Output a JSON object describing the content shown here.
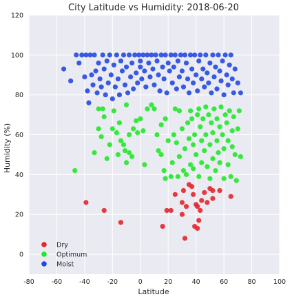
{
  "chart_data": {
    "type": "scatter",
    "title": "City Latitude vs Humidity: 2018-06-20",
    "xlabel": "Latitude",
    "ylabel": "Humidity (%)",
    "xlim": [
      -80,
      100
    ],
    "ylim": [
      -10,
      120
    ],
    "xticks": [
      "-80",
      "-60",
      "-40",
      "-20",
      "0",
      "20",
      "40",
      "60",
      "80",
      "100"
    ],
    "yticks": [
      "0",
      "20",
      "40",
      "60",
      "80",
      "100",
      "120"
    ],
    "grid": true,
    "background": "#eaeaf2",
    "legend_position": "lower-left",
    "series": [
      {
        "name": "Dry",
        "color": "#e3262b",
        "points": [
          [
            -39,
            26
          ],
          [
            -26,
            22
          ],
          [
            -14,
            16
          ],
          [
            16,
            14
          ],
          [
            19,
            22
          ],
          [
            22,
            22
          ],
          [
            25,
            30
          ],
          [
            30,
            26
          ],
          [
            30,
            20
          ],
          [
            31,
            32
          ],
          [
            32,
            8
          ],
          [
            33,
            24
          ],
          [
            35,
            35
          ],
          [
            37,
            34
          ],
          [
            38,
            30
          ],
          [
            39,
            14
          ],
          [
            40,
            25
          ],
          [
            41,
            24
          ],
          [
            41,
            13
          ],
          [
            42,
            17
          ],
          [
            43,
            22
          ],
          [
            44,
            27
          ],
          [
            46,
            31
          ],
          [
            48,
            26
          ],
          [
            50,
            33
          ],
          [
            52,
            28
          ],
          [
            52,
            32
          ],
          [
            57,
            32
          ],
          [
            65,
            29
          ]
        ]
      },
      {
        "name": "Optimum",
        "color": "#22e82a",
        "points": [
          [
            -47,
            42
          ],
          [
            -33,
            51
          ],
          [
            -30,
            63
          ],
          [
            -30,
            73
          ],
          [
            -28,
            59
          ],
          [
            -27,
            73
          ],
          [
            -26,
            69
          ],
          [
            -24,
            48
          ],
          [
            -22,
            55
          ],
          [
            -20,
            63
          ],
          [
            -19,
            72
          ],
          [
            -17,
            61
          ],
          [
            -16,
            50
          ],
          [
            -15,
            66
          ],
          [
            -14,
            57
          ],
          [
            -12,
            55
          ],
          [
            -11,
            52
          ],
          [
            -10,
            46
          ],
          [
            -10,
            75
          ],
          [
            -8,
            60
          ],
          [
            -8,
            51
          ],
          [
            -6,
            49
          ],
          [
            -5,
            63
          ],
          [
            -3,
            67
          ],
          [
            -2,
            61
          ],
          [
            0,
            68
          ],
          [
            2,
            62
          ],
          [
            3,
            45
          ],
          [
            5,
            73
          ],
          [
            8,
            75
          ],
          [
            10,
            73
          ],
          [
            12,
            60
          ],
          [
            13,
            52
          ],
          [
            15,
            65
          ],
          [
            15,
            50
          ],
          [
            17,
            42
          ],
          [
            18,
            38
          ],
          [
            18,
            68
          ],
          [
            20,
            57
          ],
          [
            22,
            39
          ],
          [
            23,
            46
          ],
          [
            24,
            60
          ],
          [
            25,
            73
          ],
          [
            26,
            56
          ],
          [
            27,
            39
          ],
          [
            28,
            49
          ],
          [
            28,
            72
          ],
          [
            30,
            63
          ],
          [
            31,
            42
          ],
          [
            32,
            53
          ],
          [
            33,
            40
          ],
          [
            34,
            66
          ],
          [
            35,
            58
          ],
          [
            36,
            45
          ],
          [
            36,
            72
          ],
          [
            37,
            68
          ],
          [
            38,
            55
          ],
          [
            38,
            43
          ],
          [
            39,
            60
          ],
          [
            40,
            50
          ],
          [
            41,
            70
          ],
          [
            42,
            73
          ],
          [
            42,
            39
          ],
          [
            43,
            64
          ],
          [
            44,
            46
          ],
          [
            44,
            57
          ],
          [
            45,
            68
          ],
          [
            46,
            52
          ],
          [
            47,
            74
          ],
          [
            47,
            60
          ],
          [
            48,
            44
          ],
          [
            49,
            70
          ],
          [
            50,
            55
          ],
          [
            50,
            38
          ],
          [
            51,
            66
          ],
          [
            52,
            61
          ],
          [
            52,
            48
          ],
          [
            53,
            73
          ],
          [
            54,
            42
          ],
          [
            55,
            68
          ],
          [
            55,
            57
          ],
          [
            56,
            51
          ],
          [
            57,
            64
          ],
          [
            57,
            46
          ],
          [
            58,
            74
          ],
          [
            59,
            60
          ],
          [
            60,
            38
          ],
          [
            60,
            53
          ],
          [
            61,
            70
          ],
          [
            62,
            66
          ],
          [
            63,
            45
          ],
          [
            63,
            57
          ],
          [
            64,
            72
          ],
          [
            65,
            39
          ],
          [
            66,
            62
          ],
          [
            66,
            54
          ],
          [
            67,
            69
          ],
          [
            68,
            50
          ],
          [
            69,
            37
          ],
          [
            70,
            63
          ],
          [
            71,
            72
          ],
          [
            72,
            49
          ]
        ]
      },
      {
        "name": "Moist",
        "color": "#2449e2",
        "points": [
          [
            -55,
            93
          ],
          [
            -50,
            87
          ],
          [
            -46,
            100
          ],
          [
            -44,
            96
          ],
          [
            -42,
            100
          ],
          [
            -40,
            89
          ],
          [
            -39,
            100
          ],
          [
            -38,
            82
          ],
          [
            -37,
            76
          ],
          [
            -36,
            100
          ],
          [
            -35,
            90
          ],
          [
            -34,
            85
          ],
          [
            -33,
            100
          ],
          [
            -32,
            92
          ],
          [
            -31,
            81
          ],
          [
            -30,
            96
          ],
          [
            -29,
            88
          ],
          [
            -28,
            84
          ],
          [
            -27,
            100
          ],
          [
            -26,
            93
          ],
          [
            -25,
            80
          ],
          [
            -24,
            97
          ],
          [
            -23,
            86
          ],
          [
            -22,
            100
          ],
          [
            -21,
            90
          ],
          [
            -20,
            78
          ],
          [
            -19,
            95
          ],
          [
            -18,
            84
          ],
          [
            -17,
            100
          ],
          [
            -16,
            88
          ],
          [
            -15,
            80
          ],
          [
            -14,
            97
          ],
          [
            -13,
            92
          ],
          [
            -12,
            100
          ],
          [
            -11,
            85
          ],
          [
            -10,
            94
          ],
          [
            -9,
            81
          ],
          [
            -8,
            100
          ],
          [
            -7,
            89
          ],
          [
            -6,
            96
          ],
          [
            -5,
            83
          ],
          [
            -4,
            100
          ],
          [
            -3,
            91
          ],
          [
            -2,
            86
          ],
          [
            -1,
            100
          ],
          [
            0,
            94
          ],
          [
            0,
            97
          ],
          [
            1,
            88
          ],
          [
            2,
            100
          ],
          [
            3,
            92
          ],
          [
            4,
            84
          ],
          [
            5,
            100
          ],
          [
            6,
            96
          ],
          [
            7,
            89
          ],
          [
            8,
            100
          ],
          [
            9,
            93
          ],
          [
            10,
            85
          ],
          [
            11,
            100
          ],
          [
            12,
            97
          ],
          [
            13,
            90
          ],
          [
            14,
            82
          ],
          [
            15,
            100
          ],
          [
            16,
            94
          ],
          [
            17,
            88
          ],
          [
            18,
            100
          ],
          [
            19,
            81
          ],
          [
            20,
            96
          ],
          [
            21,
            92
          ],
          [
            22,
            100
          ],
          [
            23,
            86
          ],
          [
            24,
            94
          ],
          [
            25,
            100
          ],
          [
            26,
            83
          ],
          [
            27,
            97
          ],
          [
            28,
            89
          ],
          [
            29,
            100
          ],
          [
            30,
            92
          ],
          [
            31,
            84
          ],
          [
            32,
            100
          ],
          [
            33,
            96
          ],
          [
            34,
            88
          ],
          [
            35,
            81
          ],
          [
            36,
            100
          ],
          [
            37,
            93
          ],
          [
            38,
            86
          ],
          [
            39,
            100
          ],
          [
            40,
            90
          ],
          [
            41,
            82
          ],
          [
            42,
            97
          ],
          [
            43,
            100
          ],
          [
            44,
            88
          ],
          [
            45,
            93
          ],
          [
            46,
            84
          ],
          [
            47,
            100
          ],
          [
            48,
            91
          ],
          [
            49,
            86
          ],
          [
            50,
            96
          ],
          [
            51,
            81
          ],
          [
            52,
            100
          ],
          [
            53,
            89
          ],
          [
            54,
            94
          ],
          [
            55,
            83
          ],
          [
            56,
            100
          ],
          [
            57,
            92
          ],
          [
            58,
            87
          ],
          [
            59,
            97
          ],
          [
            60,
            80
          ],
          [
            61,
            100
          ],
          [
            62,
            90
          ],
          [
            63,
            85
          ],
          [
            64,
            95
          ],
          [
            65,
            100
          ],
          [
            66,
            88
          ],
          [
            67,
            81
          ],
          [
            68,
            93
          ],
          [
            70,
            86
          ],
          [
            72,
            81
          ]
        ]
      }
    ]
  }
}
